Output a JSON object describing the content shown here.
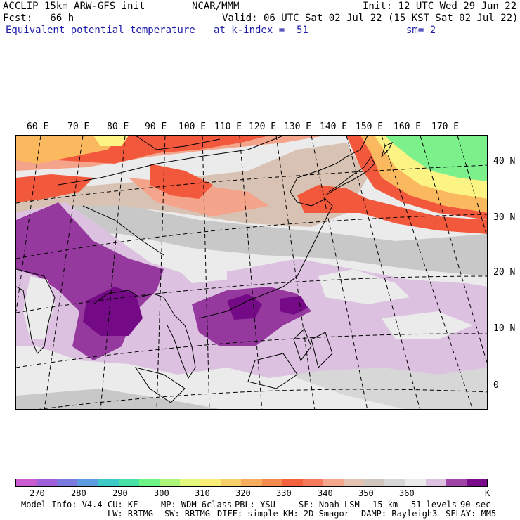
{
  "header": {
    "left_line1": "ACCLIP 15km ARW-GFS init",
    "center_line1": "NCAR/MMM",
    "right_line1": "Init: 12 UTC Wed 29 Jun 22",
    "left_line2": "Fcst:   66 h",
    "right_line2": "Valid: 06 UTC Sat 02 Jul 22 (15 KST Sat 02 Jul 22)",
    "field_name": "Equivalent potential temperature",
    "level": "at k-index =  51",
    "smoothing": "sm= 2"
  },
  "map": {
    "lon_labels": [
      "60 E",
      "70 E",
      "80 E",
      "90 E",
      "100 E",
      "110 E",
      "120 E",
      "130 E",
      "140 E",
      "150 E",
      "160 E",
      "170 E"
    ],
    "lat_labels": [
      "40 N",
      "30 N",
      "20 N",
      "10 N",
      "0"
    ],
    "field_colors": {
      "dark_purple": "#750a87",
      "purple": "#96399e",
      "light_purple": "#dcc1e0",
      "light_gray": "#ebebeb",
      "gray": "#c8c8c8",
      "tan": "#d8c2b4",
      "salmon": "#f5a48c",
      "red": "#f2583c",
      "orange": "#fbb95f",
      "yellow": "#fbf384",
      "green": "#7bf08b"
    }
  },
  "colorbar": {
    "colors": [
      "#c95ad0",
      "#9e5fd8",
      "#7b79de",
      "#5b9be0",
      "#3ec9c9",
      "#48e1a5",
      "#6cf285",
      "#acf578",
      "#e2f77c",
      "#f9ee76",
      "#f9cf6a",
      "#f8ad5c",
      "#f58a4e",
      "#f4623d",
      "#f57a5b",
      "#f5a78e",
      "#e3c4b4",
      "#cfc6c0",
      "#d7d7d7",
      "#ebebeb",
      "#dcc1e0",
      "#a044a7",
      "#7a0b8a"
    ],
    "labels": [
      "270",
      "280",
      "290",
      "300",
      "310",
      "320",
      "330",
      "340",
      "350",
      "360"
    ],
    "unit": "K"
  },
  "footer": {
    "line1_model": "Model Info: V4.4",
    "line1_cu": "CU: KF",
    "line1_mp": "MP: WDM 6class",
    "line1_pbl": "PBL: YSU",
    "line1_sf": "SF: Noah LSM",
    "line1_res": "15 km",
    "line1_levels": "51 levels",
    "line1_dt": "90 sec",
    "line2_lw": "LW: RRTMG",
    "line2_sw": "SW: RRTMG",
    "line2_diff": "DIFF: simple",
    "line2_km": "KM: 2D Smagor",
    "line2_damp": "DAMP: Rayleigh3",
    "line2_sflay": "SFLAY: MM5"
  }
}
